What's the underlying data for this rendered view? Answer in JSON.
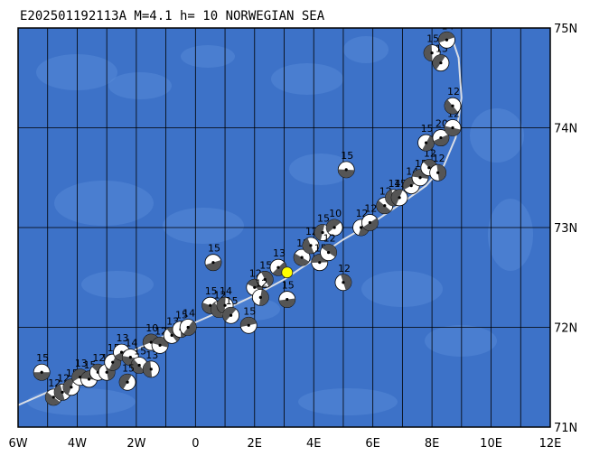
{
  "title": "E202501192113A  M=4.1  h= 10 NORWEGIAN SEA",
  "map": {
    "lon_range": [
      -6,
      12
    ],
    "lat_range": [
      71,
      75
    ],
    "grid_lon_step": 1,
    "grid_lat_step": 1,
    "lon_labels": [
      "6W",
      "4W",
      "2W",
      "0",
      "2E",
      "4E",
      "6E",
      "8E",
      "10E",
      "12E"
    ],
    "lat_labels": [
      "71N",
      "72N",
      "73N",
      "74N",
      "75N"
    ],
    "colors": {
      "ocean": "#3d72c8",
      "ocean_shallow": "#5b8fd9",
      "grid": "#000000",
      "ridge": "#d8dde6",
      "event": "#ffff00",
      "beachball_dark": "#555555",
      "beachball_light": "#ffffff"
    }
  },
  "event": {
    "lon": 3.1,
    "lat": 72.55,
    "label": "E202501192113A"
  },
  "ridge_line": [
    [
      -6.0,
      71.22
    ],
    [
      -5.0,
      71.35
    ],
    [
      -4.0,
      71.5
    ],
    [
      -3.0,
      71.62
    ],
    [
      -2.0,
      71.78
    ],
    [
      -1.0,
      71.92
    ],
    [
      0.0,
      72.05
    ],
    [
      1.0,
      72.18
    ],
    [
      2.0,
      72.32
    ],
    [
      3.0,
      72.48
    ],
    [
      4.0,
      72.68
    ],
    [
      5.0,
      72.88
    ],
    [
      6.0,
      73.05
    ],
    [
      7.0,
      73.25
    ],
    [
      7.8,
      73.42
    ],
    [
      8.4,
      73.62
    ],
    [
      8.8,
      73.9
    ],
    [
      9.0,
      74.3
    ],
    [
      8.9,
      74.7
    ],
    [
      8.7,
      74.88
    ]
  ],
  "mechanisms": [
    {
      "lon": -5.2,
      "lat": 71.55,
      "label": "15"
    },
    {
      "lon": -4.8,
      "lat": 71.3,
      "label": "12"
    },
    {
      "lon": -4.5,
      "lat": 71.35,
      "label": "12"
    },
    {
      "lon": -4.2,
      "lat": 71.4,
      "label": "15"
    },
    {
      "lon": -3.9,
      "lat": 71.5,
      "label": "13"
    },
    {
      "lon": -3.6,
      "lat": 71.48,
      "label": "15"
    },
    {
      "lon": -3.3,
      "lat": 71.55,
      "label": "12"
    },
    {
      "lon": -3.0,
      "lat": 71.55,
      "label": "12"
    },
    {
      "lon": -2.8,
      "lat": 71.65,
      "label": "15"
    },
    {
      "lon": -2.5,
      "lat": 71.75,
      "label": "13"
    },
    {
      "lon": -2.2,
      "lat": 71.7,
      "label": "14"
    },
    {
      "lon": -1.9,
      "lat": 71.62,
      "label": "15"
    },
    {
      "lon": -1.5,
      "lat": 71.58,
      "label": "13"
    },
    {
      "lon": -2.3,
      "lat": 71.45,
      "label": "15"
    },
    {
      "lon": -1.5,
      "lat": 71.85,
      "label": "10"
    },
    {
      "lon": -1.2,
      "lat": 71.82,
      "label": "12"
    },
    {
      "lon": -0.8,
      "lat": 71.92,
      "label": "13"
    },
    {
      "lon": -0.5,
      "lat": 71.98,
      "label": "15"
    },
    {
      "lon": -0.25,
      "lat": 72.0,
      "label": "14"
    },
    {
      "lon": 0.6,
      "lat": 72.65,
      "label": "15"
    },
    {
      "lon": 0.5,
      "lat": 72.22,
      "label": "15"
    },
    {
      "lon": 0.8,
      "lat": 72.18,
      "label": "12"
    },
    {
      "lon": 1.0,
      "lat": 72.22,
      "label": "14"
    },
    {
      "lon": 1.2,
      "lat": 72.12,
      "label": "15"
    },
    {
      "lon": 1.8,
      "lat": 72.02,
      "label": "15"
    },
    {
      "lon": 2.0,
      "lat": 72.4,
      "label": "12"
    },
    {
      "lon": 2.35,
      "lat": 72.48,
      "label": "15"
    },
    {
      "lon": 2.2,
      "lat": 72.3,
      "label": "12"
    },
    {
      "lon": 2.8,
      "lat": 72.6,
      "label": "13"
    },
    {
      "lon": 3.1,
      "lat": 72.28,
      "label": "15"
    },
    {
      "lon": 3.6,
      "lat": 72.7,
      "label": "12"
    },
    {
      "lon": 3.9,
      "lat": 72.82,
      "label": "12"
    },
    {
      "lon": 4.3,
      "lat": 72.95,
      "label": "15"
    },
    {
      "lon": 4.7,
      "lat": 73.0,
      "label": "10"
    },
    {
      "lon": 4.2,
      "lat": 72.65,
      "label": "15"
    },
    {
      "lon": 4.5,
      "lat": 72.75,
      "label": "12"
    },
    {
      "lon": 5.0,
      "lat": 72.45,
      "label": "12"
    },
    {
      "lon": 5.6,
      "lat": 73.0,
      "label": "12"
    },
    {
      "lon": 5.9,
      "lat": 73.05,
      "label": "12"
    },
    {
      "lon": 5.1,
      "lat": 73.58,
      "label": "15"
    },
    {
      "lon": 6.4,
      "lat": 73.22,
      "label": "12"
    },
    {
      "lon": 6.7,
      "lat": 73.3,
      "label": "14"
    },
    {
      "lon": 6.9,
      "lat": 73.3,
      "label": "15"
    },
    {
      "lon": 7.3,
      "lat": 73.42,
      "label": "14"
    },
    {
      "lon": 7.6,
      "lat": 73.5,
      "label": "15"
    },
    {
      "lon": 7.9,
      "lat": 73.6,
      "label": "12"
    },
    {
      "lon": 8.2,
      "lat": 73.55,
      "label": "12"
    },
    {
      "lon": 7.8,
      "lat": 73.85,
      "label": "15"
    },
    {
      "lon": 8.3,
      "lat": 73.9,
      "label": "20"
    },
    {
      "lon": 8.7,
      "lat": 74.0,
      "label": "12"
    },
    {
      "lon": 8.7,
      "lat": 74.22,
      "label": "12"
    },
    {
      "lon": 8.0,
      "lat": 74.75,
      "label": "15"
    },
    {
      "lon": 8.3,
      "lat": 74.65,
      "label": "13"
    },
    {
      "lon": 8.5,
      "lat": 74.88,
      "label": "14"
    }
  ]
}
